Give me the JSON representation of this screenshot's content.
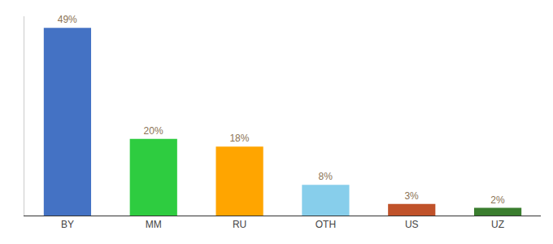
{
  "chart_data": {
    "type": "bar",
    "categories": [
      "BY",
      "MM",
      "RU",
      "OTH",
      "US",
      "UZ"
    ],
    "values": [
      49,
      20,
      18,
      8,
      3,
      2
    ],
    "value_labels": [
      "49%",
      "20%",
      "18%",
      "8%",
      "3%",
      "2%"
    ],
    "colors": [
      "#4472C4",
      "#2ECC40",
      "#FFA500",
      "#87CEEB",
      "#C0522A",
      "#3A7D2E"
    ],
    "ylim": [
      0,
      52
    ],
    "grid": false,
    "data_labels": true,
    "tick_labels": "x"
  }
}
